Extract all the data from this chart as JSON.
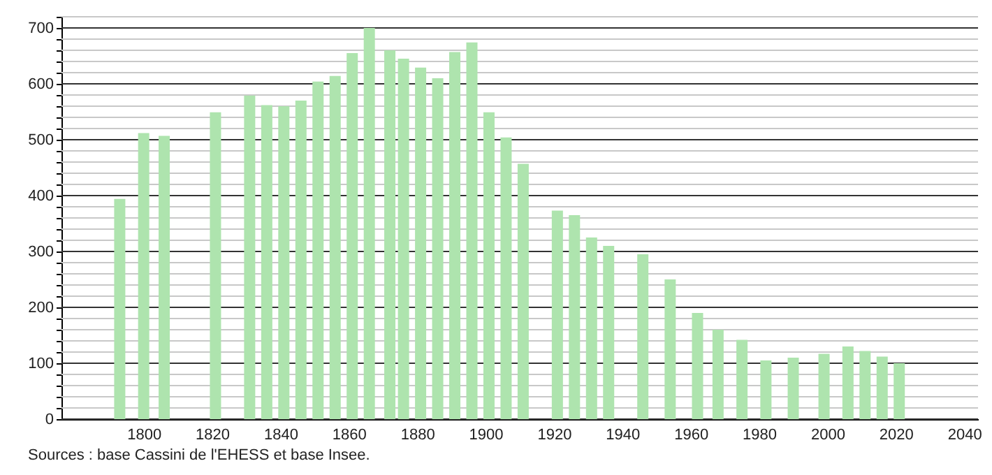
{
  "chart_data": {
    "type": "bar",
    "x": [
      1793,
      1800,
      1806,
      1821,
      1831,
      1836,
      1841,
      1846,
      1851,
      1856,
      1861,
      1866,
      1872,
      1876,
      1881,
      1886,
      1891,
      1896,
      1901,
      1906,
      1911,
      1921,
      1926,
      1931,
      1936,
      1946,
      1954,
      1962,
      1968,
      1975,
      1982,
      1990,
      1999,
      2006,
      2011,
      2016,
      2021
    ],
    "series": [
      {
        "color": "#aee4ae",
        "values": [
          394,
          512,
          507,
          549,
          579,
          562,
          560,
          570,
          604,
          614,
          655,
          700,
          660,
          645,
          629,
          610,
          657,
          674,
          549,
          504,
          457,
          373,
          365,
          325,
          310,
          295,
          250,
          190,
          160,
          142,
          105,
          110,
          117,
          130,
          122,
          112,
          100
        ]
      }
    ],
    "xlim": [
      1778,
      2042
    ],
    "xticks": [
      1800,
      1820,
      1840,
      1860,
      1880,
      1900,
      1920,
      1940,
      1960,
      1980,
      2000,
      2020,
      2040
    ],
    "ylim": [
      0,
      720
    ],
    "yticks": [
      0,
      {
        "value": 20,
        "label": null
      },
      {
        "value": 40,
        "label": null
      },
      {
        "value": 60,
        "label": null
      },
      {
        "value": 80,
        "label": null
      },
      100,
      {
        "value": 120,
        "label": null
      },
      {
        "value": 140,
        "label": null
      },
      {
        "value": 160,
        "label": null
      },
      {
        "value": 180,
        "label": null
      },
      200,
      {
        "value": 220,
        "label": null
      },
      {
        "value": 240,
        "label": null
      },
      {
        "value": 260,
        "label": null
      },
      {
        "value": 280,
        "label": null
      },
      300,
      {
        "value": 320,
        "label": null
      },
      {
        "value": 340,
        "label": null
      },
      {
        "value": 360,
        "label": null
      },
      {
        "value": 380,
        "label": null
      },
      400,
      {
        "value": 420,
        "label": null
      },
      {
        "value": 440,
        "label": null
      },
      {
        "value": 460,
        "label": null
      },
      {
        "value": 480,
        "label": null
      },
      500,
      {
        "value": 520,
        "label": null
      },
      {
        "value": 540,
        "label": null
      },
      {
        "value": 560,
        "label": null
      },
      {
        "value": 580,
        "label": null
      },
      600,
      {
        "value": 620,
        "label": null
      },
      {
        "value": 640,
        "label": null
      },
      {
        "value": 660,
        "label": null
      },
      {
        "value": 680,
        "label": null
      },
      700,
      {
        "value": 720,
        "label": null
      }
    ],
    "grid": "y",
    "annotations": [
      "Sources : base Cassini de l'EHESS et base Insee."
    ]
  }
}
